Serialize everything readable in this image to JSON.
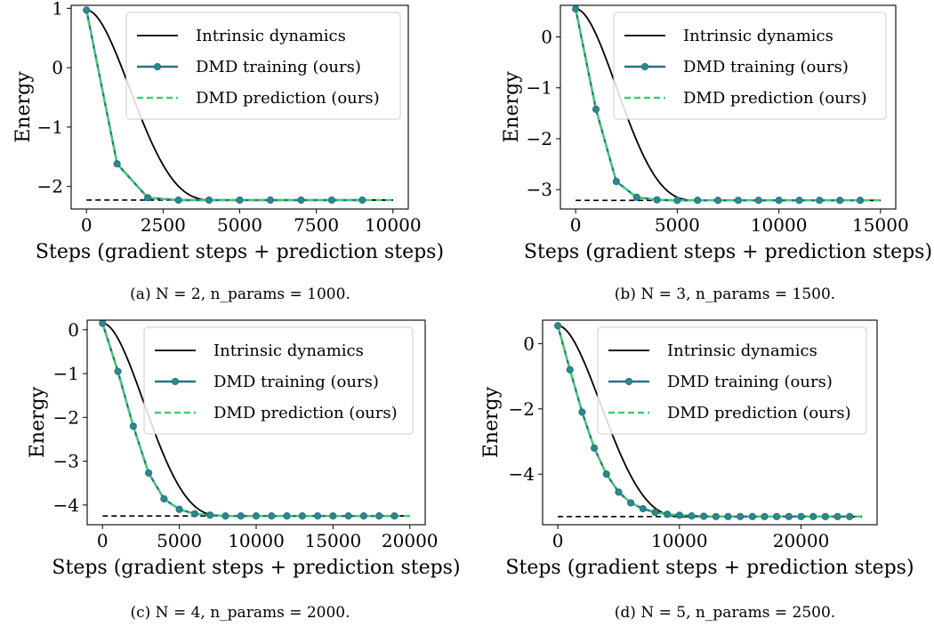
{
  "legend": {
    "intrinsic": "Intrinsic dynamics",
    "training": "DMD training (ours)",
    "prediction": "DMD prediction (ours)"
  },
  "colors": {
    "intrinsic": "#000000",
    "training": "#2a7183",
    "training_marker": "#2a8a8a",
    "prediction": "#3fcf6f",
    "ground_state": "#000000"
  },
  "chart_data": [
    {
      "type": "line",
      "caption": "(a) N = 2, n_params = 1000.",
      "xlabel": "Steps (gradient steps + prediction steps)",
      "ylabel": "Energy",
      "xlim": [
        -500,
        10500
      ],
      "ylim": [
        -2.38,
        1.05
      ],
      "xticks": [
        0,
        2500,
        5000,
        7500,
        10000
      ],
      "xtick_labels": [
        "0",
        "2500",
        "5000",
        "7500",
        "10000"
      ],
      "yticks": [
        1,
        0,
        -1,
        -2
      ],
      "ytick_labels": [
        "1",
        "0",
        "−1",
        "−2"
      ],
      "legend_position": "top-right",
      "ground_state": -2.23,
      "ground_state_range": [
        0,
        10000
      ],
      "x_end": 10000,
      "intrinsic": {
        "start": 0.97,
        "end": -2.23,
        "T": 4200
      },
      "training_x": [
        0,
        1000,
        2000,
        3000,
        4000,
        5000,
        6000,
        7000,
        8000,
        9000
      ],
      "training_values": [
        0.97,
        -1.62,
        -2.19,
        -2.23,
        -2.23,
        -2.23,
        -2.23,
        -2.23,
        -2.23,
        -2.23
      ]
    },
    {
      "type": "line",
      "caption": "(b) N = 3, n_params = 1500.",
      "xlabel": "Steps (gradient steps + prediction steps)",
      "ylabel": "Energy",
      "xlim": [
        -750,
        15750
      ],
      "ylim": [
        -3.38,
        0.62
      ],
      "xticks": [
        0,
        5000,
        10000,
        15000
      ],
      "xtick_labels": [
        "0",
        "5000",
        "10000",
        "15000"
      ],
      "yticks": [
        0,
        -1,
        -2,
        -3
      ],
      "ytick_labels": [
        "0",
        "−1",
        "−2",
        "−3"
      ],
      "legend_position": "top-right",
      "ground_state": -3.21,
      "ground_state_range": [
        0,
        15000
      ],
      "x_end": 15000,
      "intrinsic": {
        "start": 0.55,
        "end": -3.21,
        "T": 6000
      },
      "training_x": [
        0,
        1000,
        2000,
        3000,
        4000,
        5000,
        6000,
        7000,
        8000,
        9000,
        10000,
        11000,
        12000,
        13000,
        14000
      ],
      "training_values": [
        0.55,
        -1.42,
        -2.84,
        -3.15,
        -3.2,
        -3.21,
        -3.21,
        -3.21,
        -3.21,
        -3.21,
        -3.21,
        -3.21,
        -3.21,
        -3.21,
        -3.21
      ]
    },
    {
      "type": "line",
      "caption": "(c) N = 4, n_params = 2000.",
      "xlabel": "Steps (gradient steps + prediction steps)",
      "ylabel": "Energy",
      "xlim": [
        -1000,
        21000
      ],
      "ylim": [
        -4.45,
        0.22
      ],
      "xticks": [
        0,
        5000,
        10000,
        15000,
        20000
      ],
      "xtick_labels": [
        "0",
        "5000",
        "10000",
        "15000",
        "20000"
      ],
      "yticks": [
        0,
        -1,
        -2,
        -3,
        -4
      ],
      "ytick_labels": [
        "0",
        "−1",
        "−2",
        "−3",
        "−4"
      ],
      "legend_position": "top-right",
      "ground_state": -4.25,
      "ground_state_range": [
        0,
        20000
      ],
      "x_end": 20000,
      "intrinsic": {
        "start": 0.15,
        "end": -4.25,
        "T": 8000
      },
      "training_x": [
        0,
        1000,
        2000,
        3000,
        4000,
        5000,
        6000,
        7000,
        8000,
        9000,
        10000,
        11000,
        12000,
        13000,
        14000,
        15000,
        16000,
        17000,
        18000,
        19000
      ],
      "training_values": [
        0.15,
        -0.95,
        -2.2,
        -3.27,
        -3.86,
        -4.1,
        -4.2,
        -4.23,
        -4.25,
        -4.25,
        -4.25,
        -4.25,
        -4.25,
        -4.25,
        -4.25,
        -4.25,
        -4.25,
        -4.25,
        -4.25,
        -4.25
      ]
    },
    {
      "type": "line",
      "caption": "(d) N = 5, n_params = 2500.",
      "xlabel": "Steps (gradient steps + prediction steps)",
      "ylabel": "Energy",
      "xlim": [
        -1250,
        26250
      ],
      "ylim": [
        -5.55,
        0.72
      ],
      "xticks": [
        0,
        10000,
        20000
      ],
      "xtick_labels": [
        "0",
        "10000",
        "20000"
      ],
      "yticks": [
        0,
        -2,
        -4
      ],
      "ytick_labels": [
        "0",
        "−2",
        "−4"
      ],
      "legend_position": "top-right",
      "ground_state": -5.3,
      "ground_state_range": [
        0,
        25000
      ],
      "x_end": 25000,
      "intrinsic": {
        "start": 0.55,
        "end": -5.3,
        "T": 10500
      },
      "training_x": [
        0,
        1000,
        2000,
        3000,
        4000,
        5000,
        6000,
        7000,
        8000,
        9000,
        10000,
        11000,
        12000,
        13000,
        14000,
        15000,
        16000,
        17000,
        18000,
        19000,
        20000,
        21000,
        22000,
        23000,
        24000
      ],
      "training_values": [
        0.55,
        -0.8,
        -2.1,
        -3.2,
        -4.0,
        -4.55,
        -4.88,
        -5.06,
        -5.17,
        -5.23,
        -5.26,
        -5.28,
        -5.29,
        -5.3,
        -5.3,
        -5.3,
        -5.3,
        -5.3,
        -5.3,
        -5.3,
        -5.3,
        -5.3,
        -5.3,
        -5.3,
        -5.3
      ]
    }
  ]
}
